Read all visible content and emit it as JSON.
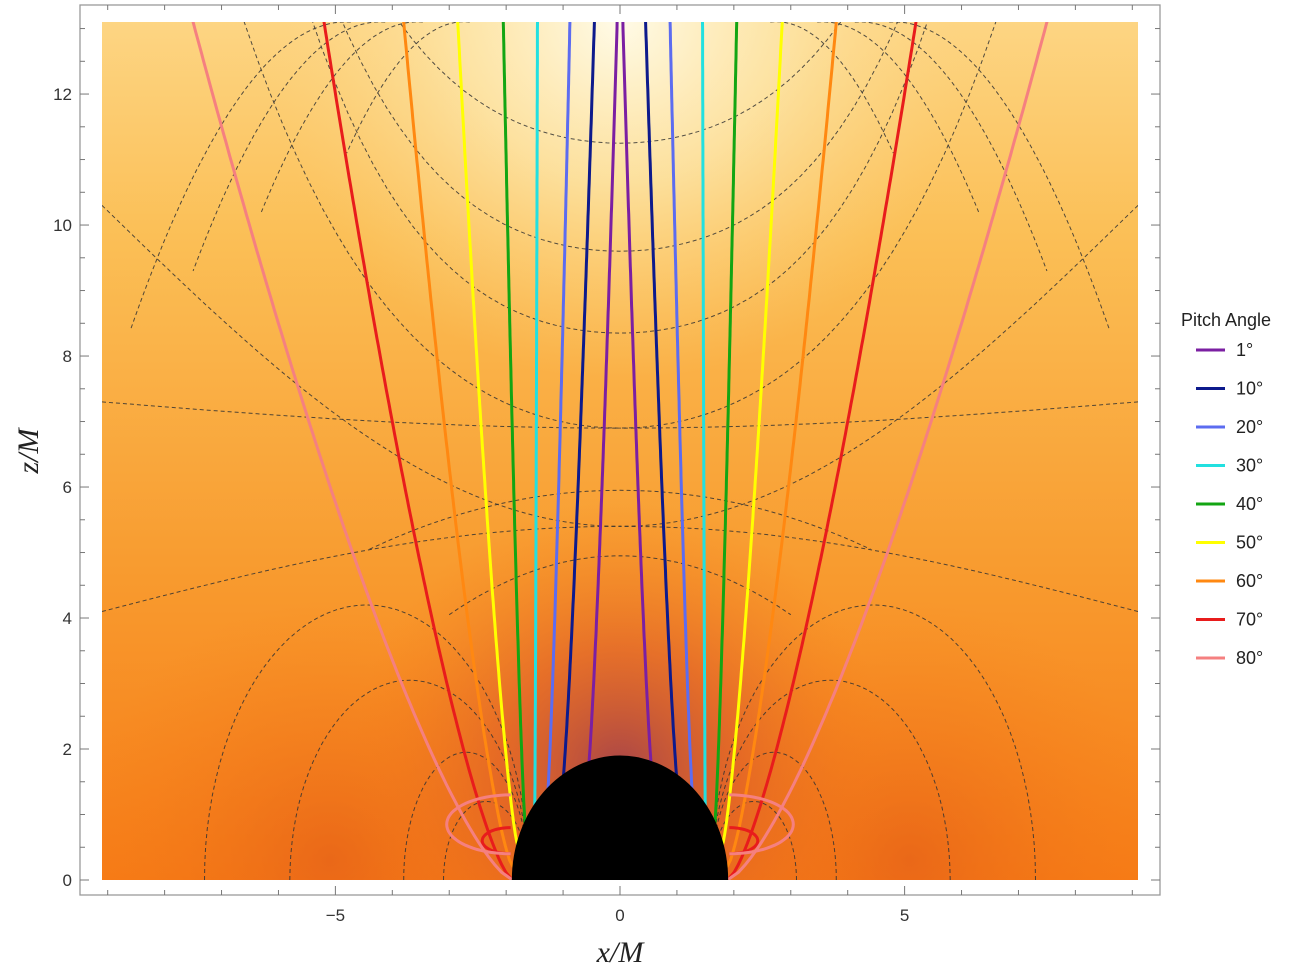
{
  "chart_data": {
    "type": "line",
    "title": "",
    "xlabel": "x/M",
    "ylabel": "z/M",
    "xlim": [
      -9.1,
      9.1
    ],
    "ylim": [
      0,
      13.1
    ],
    "x_ticks": [
      -5,
      0,
      5
    ],
    "y_ticks": [
      0,
      2,
      4,
      6,
      8,
      10,
      12
    ],
    "grid": false,
    "background": "heatmap (orange, brighter toward top-center)",
    "horizon_radius": 1.9,
    "legend": {
      "title": "Pitch Angle",
      "placement": "right"
    },
    "series": [
      {
        "name": "1°",
        "color": "#7b1fa2",
        "footpoint": 0.6,
        "top_x": 0.05,
        "loop_height": 0
      },
      {
        "name": "10°",
        "color": "#0d1a8c",
        "footpoint": 1.05,
        "top_x": 0.45,
        "loop_height": 0
      },
      {
        "name": "20°",
        "color": "#5c6cf0",
        "footpoint": 1.3,
        "top_x": 0.88,
        "loop_height": 0
      },
      {
        "name": "30°",
        "color": "#22e0e0",
        "footpoint": 1.5,
        "top_x": 1.45,
        "loop_height": 0
      },
      {
        "name": "40°",
        "color": "#13a513",
        "footpoint": 1.65,
        "top_x": 2.05,
        "loop_height": 0
      },
      {
        "name": "50°",
        "color": "#ffff00",
        "footpoint": 1.78,
        "top_x": 2.85,
        "loop_height": 0
      },
      {
        "name": "60°",
        "color": "#ff8811",
        "footpoint": 1.88,
        "top_x": 3.8,
        "loop_height": 0
      },
      {
        "name": "70°",
        "color": "#e81c1c",
        "footpoint": 1.9,
        "top_x": 5.2,
        "loop_height": 0.4
      },
      {
        "name": "80°",
        "color": "#f58080",
        "footpoint": 1.9,
        "top_x": 7.5,
        "loop_height": 0.9
      }
    ]
  }
}
